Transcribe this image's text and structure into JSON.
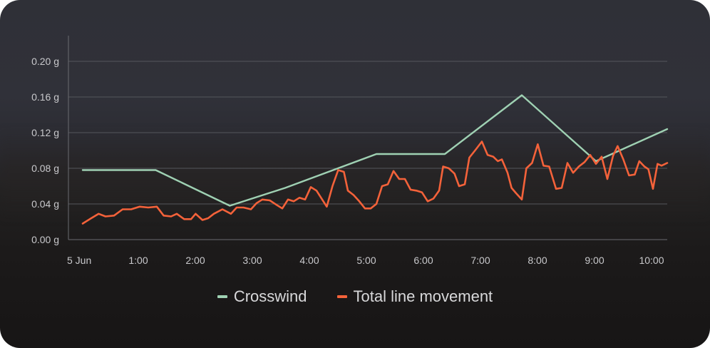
{
  "chart_data": {
    "type": "line",
    "xlabel": "",
    "ylabel": "",
    "x_tick_labels": [
      "5 Jun",
      "1:00",
      "2:00",
      "3:00",
      "4:00",
      "5:00",
      "6:00",
      "7:00",
      "8:00",
      "9:00",
      "10:00"
    ],
    "y_tick_labels": [
      "0.00 g",
      "0.04 g",
      "0.08 g",
      "0.12 g",
      "0.16 g",
      "0.20 g"
    ],
    "y_ticks": [
      0,
      0.04,
      0.08,
      0.12,
      0.16,
      0.2
    ],
    "xlim_hours": [
      0,
      10.25
    ],
    "ylim": [
      0,
      0.22
    ],
    "grid": true,
    "legend_position": "bottom-center",
    "colors": {
      "crosswind": "#9fd1b3",
      "total_line_movement": "#f4623a",
      "grid": "#55565c",
      "axis": "#6a6b70"
    },
    "series": [
      {
        "name": "Crosswind",
        "color_key": "crosswind",
        "points": [
          [
            0,
            0.078
          ],
          [
            1.28,
            0.078
          ],
          [
            2.58,
            0.038
          ],
          [
            3.55,
            0.058
          ],
          [
            5.15,
            0.096
          ],
          [
            6.35,
            0.096
          ],
          [
            7.7,
            0.162
          ],
          [
            9.0,
            0.088
          ],
          [
            10.25,
            0.124
          ]
        ]
      },
      {
        "name": "Total line movement",
        "color_key": "total_line_movement",
        "points": [
          [
            0,
            0.018
          ],
          [
            0.15,
            0.024
          ],
          [
            0.28,
            0.029
          ],
          [
            0.4,
            0.026
          ],
          [
            0.55,
            0.027
          ],
          [
            0.7,
            0.034
          ],
          [
            0.85,
            0.034
          ],
          [
            1.0,
            0.037
          ],
          [
            1.15,
            0.036
          ],
          [
            1.3,
            0.037
          ],
          [
            1.42,
            0.027
          ],
          [
            1.55,
            0.026
          ],
          [
            1.65,
            0.029
          ],
          [
            1.78,
            0.023
          ],
          [
            1.9,
            0.023
          ],
          [
            1.98,
            0.029
          ],
          [
            2.1,
            0.022
          ],
          [
            2.2,
            0.024
          ],
          [
            2.3,
            0.029
          ],
          [
            2.45,
            0.034
          ],
          [
            2.6,
            0.029
          ],
          [
            2.7,
            0.036
          ],
          [
            2.82,
            0.036
          ],
          [
            2.95,
            0.034
          ],
          [
            3.05,
            0.041
          ],
          [
            3.15,
            0.045
          ],
          [
            3.28,
            0.044
          ],
          [
            3.4,
            0.039
          ],
          [
            3.5,
            0.035
          ],
          [
            3.6,
            0.045
          ],
          [
            3.7,
            0.043
          ],
          [
            3.8,
            0.047
          ],
          [
            3.9,
            0.045
          ],
          [
            4.0,
            0.059
          ],
          [
            4.1,
            0.055
          ],
          [
            4.2,
            0.045
          ],
          [
            4.28,
            0.037
          ],
          [
            4.38,
            0.06
          ],
          [
            4.48,
            0.078
          ],
          [
            4.58,
            0.076
          ],
          [
            4.65,
            0.055
          ],
          [
            4.75,
            0.05
          ],
          [
            4.85,
            0.043
          ],
          [
            4.95,
            0.035
          ],
          [
            5.05,
            0.035
          ],
          [
            5.15,
            0.04
          ],
          [
            5.25,
            0.06
          ],
          [
            5.35,
            0.062
          ],
          [
            5.45,
            0.077
          ],
          [
            5.55,
            0.068
          ],
          [
            5.65,
            0.068
          ],
          [
            5.75,
            0.056
          ],
          [
            5.85,
            0.055
          ],
          [
            5.95,
            0.053
          ],
          [
            6.05,
            0.043
          ],
          [
            6.15,
            0.046
          ],
          [
            6.25,
            0.055
          ],
          [
            6.32,
            0.082
          ],
          [
            6.42,
            0.08
          ],
          [
            6.52,
            0.074
          ],
          [
            6.6,
            0.06
          ],
          [
            6.7,
            0.062
          ],
          [
            6.78,
            0.092
          ],
          [
            6.88,
            0.1
          ],
          [
            7.0,
            0.11
          ],
          [
            7.1,
            0.095
          ],
          [
            7.2,
            0.093
          ],
          [
            7.28,
            0.088
          ],
          [
            7.35,
            0.09
          ],
          [
            7.45,
            0.075
          ],
          [
            7.52,
            0.058
          ],
          [
            7.6,
            0.052
          ],
          [
            7.7,
            0.045
          ],
          [
            7.78,
            0.08
          ],
          [
            7.88,
            0.086
          ],
          [
            7.98,
            0.107
          ],
          [
            8.08,
            0.083
          ],
          [
            8.18,
            0.082
          ],
          [
            8.3,
            0.057
          ],
          [
            8.4,
            0.058
          ],
          [
            8.5,
            0.086
          ],
          [
            8.6,
            0.075
          ],
          [
            8.7,
            0.082
          ],
          [
            8.8,
            0.087
          ],
          [
            8.9,
            0.095
          ],
          [
            9.0,
            0.085
          ],
          [
            9.1,
            0.093
          ],
          [
            9.2,
            0.068
          ],
          [
            9.3,
            0.094
          ],
          [
            9.38,
            0.105
          ],
          [
            9.48,
            0.09
          ],
          [
            9.58,
            0.072
          ],
          [
            9.68,
            0.073
          ],
          [
            9.76,
            0.088
          ],
          [
            9.85,
            0.082
          ],
          [
            9.92,
            0.079
          ],
          [
            10.0,
            0.057
          ],
          [
            10.08,
            0.085
          ],
          [
            10.15,
            0.083
          ],
          [
            10.25,
            0.086
          ]
        ]
      }
    ]
  }
}
